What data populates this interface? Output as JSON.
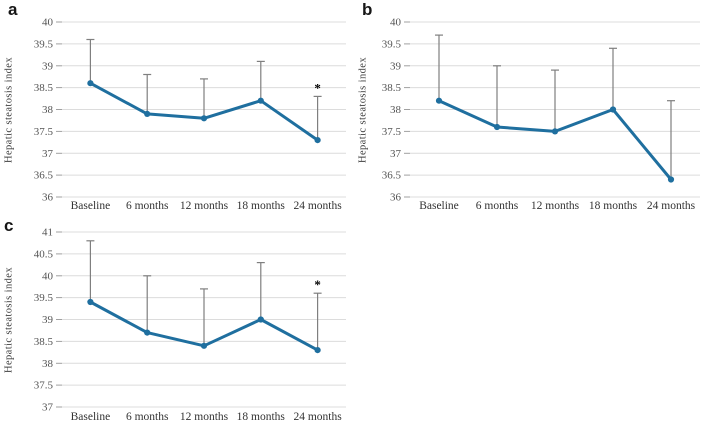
{
  "chart_data": [
    {
      "type": "line",
      "panel_label": "a",
      "title": "",
      "xlabel": "",
      "ylabel": "Hepatic steatosis index",
      "categories": [
        "Baseline",
        "6 months",
        "12 months",
        "18 months",
        "24 months"
      ],
      "series": [
        {
          "name": "Hepatic steatosis index",
          "values": [
            38.6,
            37.9,
            37.8,
            38.2,
            37.3
          ]
        }
      ],
      "error_top": [
        39.6,
        38.8,
        38.7,
        39.1,
        38.3
      ],
      "annotations": [
        "",
        "",
        "",
        "",
        "*"
      ],
      "ylim": [
        36,
        40
      ],
      "ytick_step": 0.5,
      "grid": "horizontal",
      "legend": "none",
      "line_color": "#1F6F9F",
      "error_bar_color": "#7F7F7F",
      "gridline_color": "#DCDCDC",
      "tick_mark_color": "#A0A0A0"
    },
    {
      "type": "line",
      "panel_label": "b",
      "title": "",
      "xlabel": "",
      "ylabel": "Hepatic steatosis index",
      "categories": [
        "Baseline",
        "6 months",
        "12 months",
        "18 months",
        "24 months"
      ],
      "series": [
        {
          "name": "Hepatic steatosis index",
          "values": [
            38.2,
            37.6,
            37.5,
            38.0,
            36.4
          ]
        }
      ],
      "error_top": [
        39.7,
        39.0,
        38.9,
        39.4,
        38.2
      ],
      "annotations": [
        "",
        "",
        "",
        "",
        ""
      ],
      "ylim": [
        36,
        40
      ],
      "ytick_step": 0.5,
      "grid": "horizontal",
      "legend": "none",
      "line_color": "#1F6F9F",
      "error_bar_color": "#7F7F7F",
      "gridline_color": "#DCDCDC",
      "tick_mark_color": "#A0A0A0"
    },
    {
      "type": "line",
      "panel_label": "c",
      "title": "",
      "xlabel": "",
      "ylabel": "Hepatic steatosis index",
      "categories": [
        "Baseline",
        "6 months",
        "12 months",
        "18 months",
        "24 months"
      ],
      "series": [
        {
          "name": "Hepatic steatosis index",
          "values": [
            39.4,
            38.7,
            38.4,
            39.0,
            38.3
          ]
        }
      ],
      "error_top": [
        40.8,
        40.0,
        39.7,
        40.3,
        39.6
      ],
      "annotations": [
        "",
        "",
        "",
        "",
        "*"
      ],
      "ylim": [
        37,
        41
      ],
      "ytick_step": 0.5,
      "grid": "horizontal",
      "legend": "none",
      "line_color": "#1F6F9F",
      "error_bar_color": "#7F7F7F",
      "gridline_color": "#DCDCDC",
      "tick_mark_color": "#A0A0A0"
    }
  ]
}
